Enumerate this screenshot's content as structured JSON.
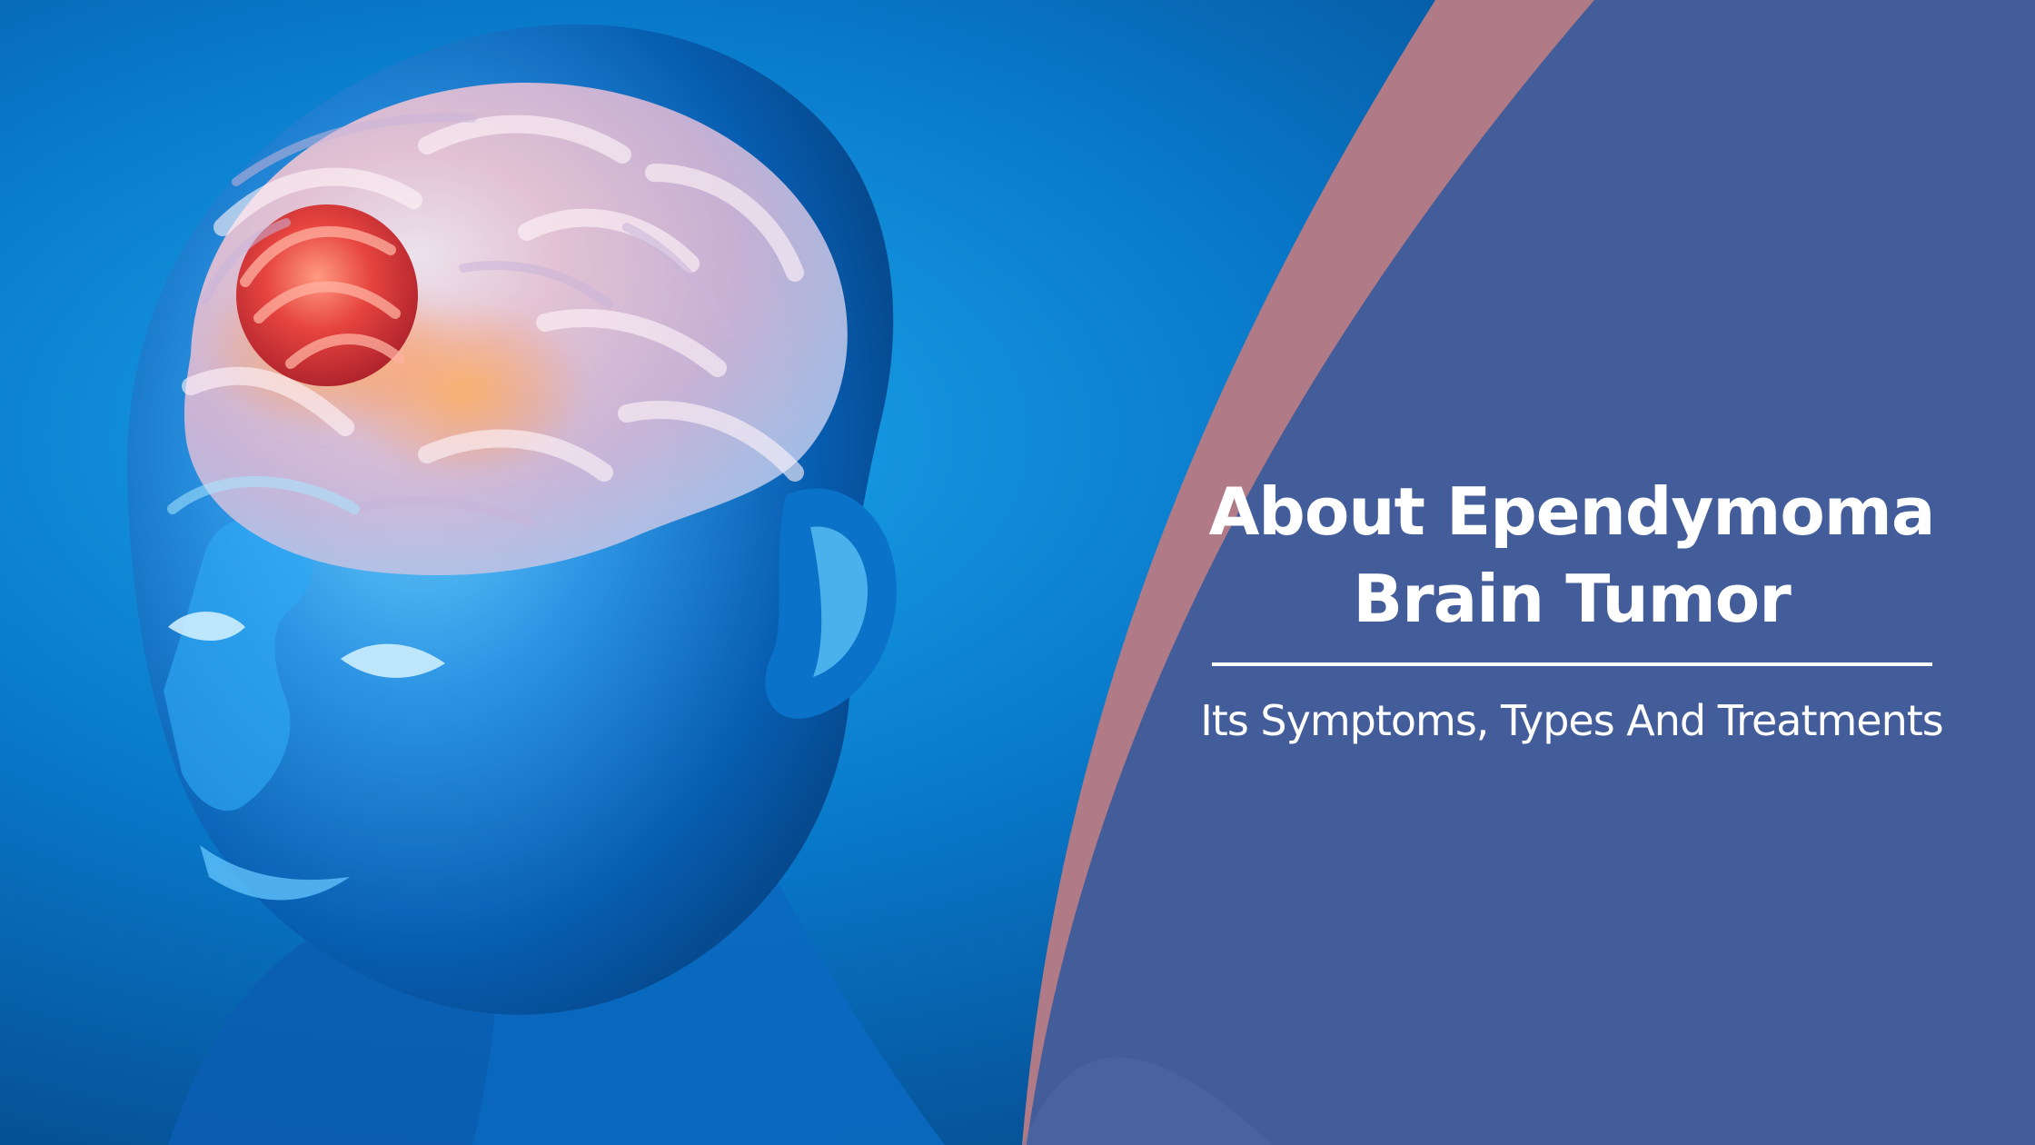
{
  "banner": {
    "title_line1": "About Ependymoma",
    "title_line2": "Brain Tumor",
    "subtitle": "Its Symptoms, Types And Treatments"
  },
  "colors": {
    "background_blue": "#0a3f86",
    "panel_blue": "#435d9a",
    "arc_rose": "#b07a86",
    "head_glow": "#58b8ff",
    "brain_pink": "#f5c7d2",
    "tumor_red": "#e5444d",
    "text": "#ffffff"
  },
  "image": {
    "subject": "blue human head illustration with brain and red tumor"
  }
}
